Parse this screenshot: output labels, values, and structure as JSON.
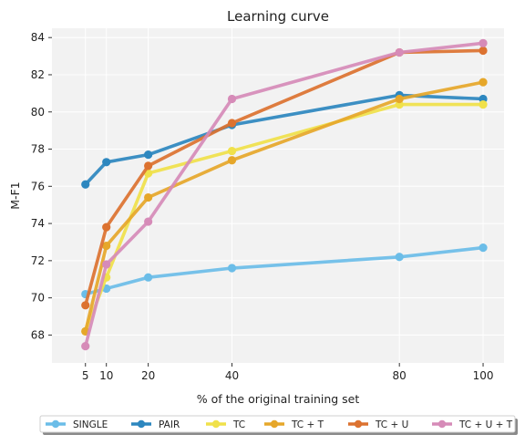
{
  "chart_data": {
    "type": "line",
    "title": "Learning curve",
    "xlabel": "% of the original training set",
    "ylabel": "M-F1",
    "x": [
      5,
      10,
      20,
      40,
      80,
      100
    ],
    "xticks": [
      5,
      10,
      20,
      40,
      80,
      100
    ],
    "yticks": [
      68,
      70,
      72,
      74,
      76,
      78,
      80,
      82,
      84
    ],
    "xlim": [
      -3,
      105
    ],
    "ylim": [
      66.5,
      84.5
    ],
    "grid": true,
    "legend_position": "bottom",
    "series": [
      {
        "name": "SINGLE",
        "color": "#6bbde8",
        "values": [
          70.2,
          70.5,
          71.1,
          71.6,
          72.2,
          72.7
        ]
      },
      {
        "name": "PAIR",
        "color": "#2d87bf",
        "values": [
          76.1,
          77.3,
          77.7,
          79.3,
          80.9,
          80.7
        ]
      },
      {
        "name": "TC",
        "color": "#f0e14a",
        "values": [
          68.2,
          71.1,
          76.7,
          77.9,
          80.4,
          80.4
        ]
      },
      {
        "name": "TC + T",
        "color": "#e6a72a",
        "values": [
          68.2,
          72.8,
          75.4,
          77.4,
          80.7,
          81.6
        ]
      },
      {
        "name": "TC + U",
        "color": "#dc7230",
        "values": [
          69.6,
          73.8,
          77.1,
          79.4,
          83.2,
          83.3
        ]
      },
      {
        "name": "TC + U + T",
        "color": "#d68bb8",
        "values": [
          67.4,
          71.8,
          74.1,
          80.7,
          83.2,
          83.7
        ]
      }
    ]
  }
}
